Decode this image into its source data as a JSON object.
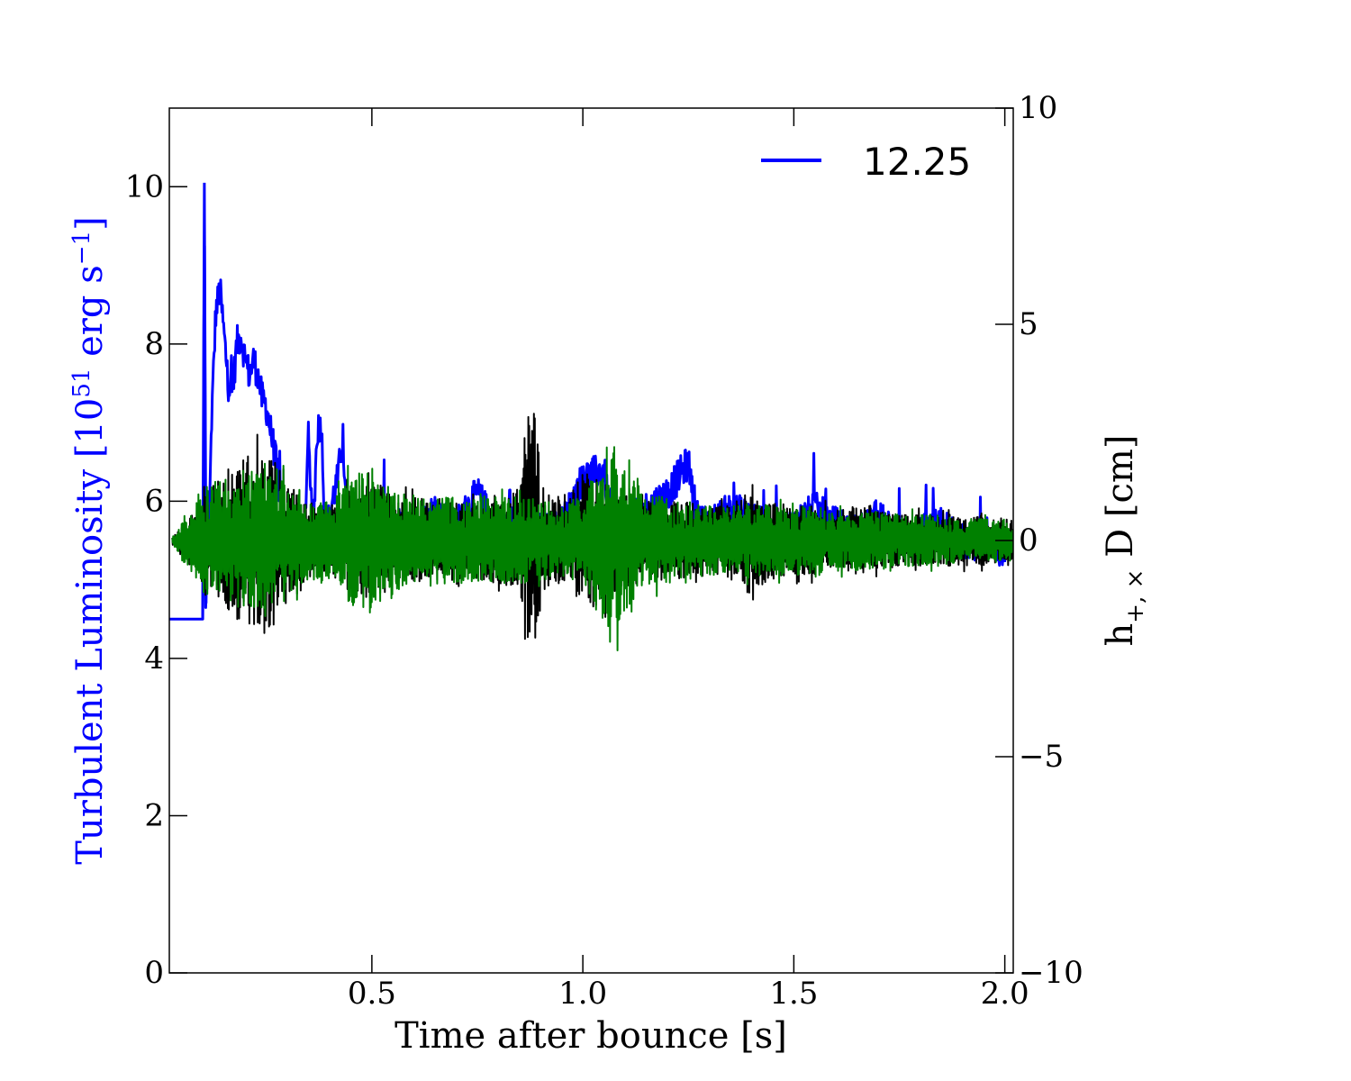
{
  "chart_data": {
    "type": "line",
    "xlabel": "Time after bounce [s]",
    "ylabel_left": "Turbulent Luminosity [10",
    "ylabel_left_sup": "51",
    "ylabel_left_tail": " erg s",
    "ylabel_left_sup2": "−1",
    "ylabel_left_end": "]",
    "ylabel_right": "h",
    "ylabel_right_sub": "+, ×",
    "ylabel_right_tail": " D [cm]",
    "xlim": [
      0.02,
      2.02
    ],
    "ylim_left": [
      0,
      11
    ],
    "ylim_right": [
      -10,
      10
    ],
    "x_ticks": [
      0.5,
      1.0,
      1.5,
      2.0
    ],
    "x_tick_labels": [
      "0.5",
      "1.0",
      "1.5",
      "2.0"
    ],
    "y_left_ticks": [
      0,
      2,
      4,
      6,
      8,
      10
    ],
    "y_left_tick_labels": [
      "0",
      "2",
      "4",
      "6",
      "8",
      "10"
    ],
    "y_right_ticks": [
      -10,
      -5,
      0,
      5,
      10
    ],
    "y_right_tick_labels": [
      "−10",
      "−5",
      "0",
      "5",
      "10"
    ],
    "legend": {
      "label": "12.25",
      "color": "#0000ff",
      "position": "top-right"
    },
    "series": [
      {
        "name": "12.25",
        "axis": "left",
        "color": "#0000ff",
        "description": "turbulent luminosity",
        "x": [
          0.02,
          0.1,
          0.103,
          0.106,
          0.11,
          0.115,
          0.12,
          0.13,
          0.14,
          0.15,
          0.16,
          0.17,
          0.18,
          0.19,
          0.2,
          0.21,
          0.22,
          0.23,
          0.24,
          0.25,
          0.26,
          0.27,
          0.28,
          0.29,
          0.3,
          0.31,
          0.32,
          0.33,
          0.34,
          0.35,
          0.36,
          0.37,
          0.38,
          0.39,
          0.4,
          0.41,
          0.42,
          0.43,
          0.44,
          0.45,
          0.46,
          0.47,
          0.48,
          0.5,
          0.55,
          0.6,
          0.65,
          0.7,
          0.75,
          0.8,
          0.85,
          0.88,
          0.9,
          0.95,
          1.0,
          1.05,
          1.06,
          1.08,
          1.1,
          1.15,
          1.2,
          1.25,
          1.27,
          1.3,
          1.35,
          1.4,
          1.45,
          1.5,
          1.55,
          1.6,
          1.65,
          1.7,
          1.75,
          1.8,
          1.85,
          1.9,
          1.95,
          2.0
        ],
        "y": [
          4.5,
          4.5,
          10.05,
          4.6,
          5.3,
          5.8,
          7.0,
          8.4,
          8.7,
          8.1,
          7.5,
          7.4,
          8.0,
          8.1,
          7.8,
          7.6,
          7.8,
          7.6,
          7.3,
          7.2,
          6.9,
          6.6,
          6.2,
          5.8,
          5.5,
          5.3,
          5.2,
          5.3,
          5.5,
          7.0,
          5.4,
          6.9,
          7.0,
          5.6,
          5.8,
          6.1,
          6.3,
          6.8,
          6.0,
          5.7,
          5.6,
          5.5,
          5.5,
          5.7,
          5.8,
          5.6,
          5.9,
          5.7,
          6.1,
          5.6,
          5.8,
          5.9,
          5.6,
          5.7,
          6.3,
          6.4,
          6.0,
          5.8,
          5.7,
          5.9,
          6.1,
          6.5,
          5.8,
          5.7,
          5.9,
          5.8,
          5.6,
          5.7,
          5.9,
          5.7,
          5.6,
          5.8,
          5.5,
          5.6,
          5.7,
          5.5,
          5.4,
          5.4
        ]
      },
      {
        "name": "",
        "axis": "right",
        "color": "#000000",
        "description": "h plus D",
        "x": [
          0.02,
          0.05,
          0.1,
          0.15,
          0.2,
          0.25,
          0.3,
          0.35,
          0.4,
          0.45,
          0.5,
          0.55,
          0.6,
          0.65,
          0.7,
          0.75,
          0.8,
          0.85,
          0.87,
          0.88,
          0.89,
          0.9,
          0.95,
          1.0,
          1.05,
          1.1,
          1.15,
          1.2,
          1.25,
          1.3,
          1.35,
          1.4,
          1.45,
          1.5,
          1.55,
          1.6,
          1.65,
          1.7,
          1.75,
          1.8,
          1.85,
          1.9,
          1.95,
          2.0
        ],
        "amplitude": [
          0.0,
          0.3,
          1.0,
          1.6,
          2.0,
          2.2,
          1.6,
          0.9,
          0.8,
          1.2,
          1.4,
          1.1,
          1.0,
          1.0,
          0.9,
          0.9,
          1.0,
          1.2,
          2.5,
          3.2,
          2.8,
          1.3,
          1.0,
          1.6,
          1.5,
          1.1,
          1.0,
          0.9,
          0.9,
          0.8,
          0.9,
          1.2,
          0.9,
          0.8,
          0.8,
          0.7,
          0.8,
          0.7,
          0.6,
          0.6,
          0.6,
          0.6,
          0.6,
          0.5
        ]
      },
      {
        "name": "",
        "axis": "right",
        "color": "#008000",
        "description": "h cross D",
        "x": [
          0.02,
          0.05,
          0.1,
          0.15,
          0.2,
          0.25,
          0.3,
          0.35,
          0.4,
          0.45,
          0.5,
          0.55,
          0.6,
          0.65,
          0.7,
          0.75,
          0.8,
          0.85,
          0.9,
          0.95,
          1.0,
          1.05,
          1.07,
          1.1,
          1.15,
          1.2,
          1.25,
          1.3,
          1.35,
          1.4,
          1.45,
          1.5,
          1.55,
          1.6,
          1.65,
          1.7,
          1.75,
          1.8,
          1.85,
          1.9,
          1.95,
          2.0
        ],
        "amplitude": [
          0.0,
          0.4,
          1.2,
          1.5,
          1.7,
          1.6,
          1.4,
          1.0,
          0.9,
          1.5,
          1.7,
          1.2,
          1.0,
          1.0,
          1.0,
          1.1,
          1.0,
          1.0,
          0.9,
          0.9,
          1.0,
          2.0,
          2.5,
          1.6,
          1.1,
          1.0,
          0.9,
          0.8,
          0.8,
          0.9,
          0.8,
          0.8,
          0.8,
          0.7,
          0.7,
          0.7,
          0.6,
          0.6,
          0.6,
          0.5,
          0.5,
          0.5
        ]
      }
    ]
  }
}
